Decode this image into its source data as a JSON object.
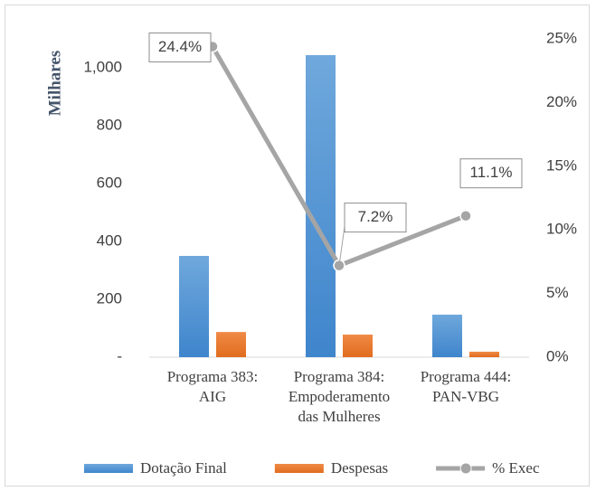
{
  "chart_data": {
    "type": "bar-line",
    "y_axis_label": "Milhares",
    "categories": [
      "Programa 383:\nAIG",
      "Programa 384:\nEmpoderamento\ndas Mulheres",
      "Programa 444:\nPAN-VBG"
    ],
    "series": [
      {
        "name": "Dotação Final",
        "type": "bar",
        "color": "#5b9bd5",
        "values": [
          350,
          1044,
          147
        ]
      },
      {
        "name": "Despesas",
        "type": "bar",
        "color": "#ed7d31",
        "values": [
          87,
          78,
          19
        ]
      },
      {
        "name": "% Exec",
        "type": "line",
        "axis": "y2",
        "color": "#a5a5a5",
        "values": [
          24.4,
          7.2,
          11.1
        ],
        "value_labels": [
          "24.4%",
          "7.2%",
          "11.1%"
        ]
      }
    ],
    "ylim": [
      0,
      1100
    ],
    "yticks": [
      {
        "value": 0,
        "label": "-"
      },
      200,
      400,
      600,
      800,
      {
        "value": 1000,
        "label": "1,000"
      }
    ],
    "y2lim": [
      0,
      25
    ],
    "y2ticks": [
      {
        "value": 0,
        "label": "0%"
      },
      {
        "value": 5,
        "label": "5%"
      },
      {
        "value": 10,
        "label": "10%"
      },
      {
        "value": 15,
        "label": "15%"
      },
      {
        "value": 20,
        "label": "20%"
      },
      {
        "value": 25,
        "label": "25%"
      }
    ],
    "legend": "bottom"
  }
}
